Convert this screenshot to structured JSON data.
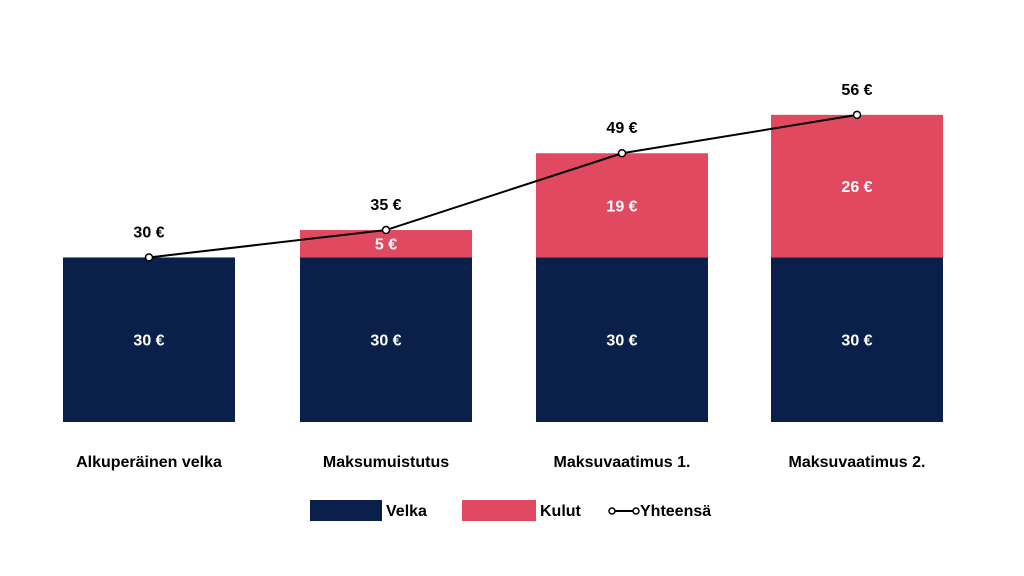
{
  "chart_data": {
    "type": "bar",
    "stacked": true,
    "categories": [
      "Alkuperäinen velka",
      "Maksumuistutus",
      "Maksuvaatimus 1.",
      "Maksuvaatimus 2."
    ],
    "series": [
      {
        "name": "Velka",
        "values": [
          30,
          30,
          30,
          30
        ],
        "labels": [
          "30 €",
          "30 €",
          "30 €",
          "30 €"
        ],
        "color": "#0b1f4b",
        "label_color": "#ffffff"
      },
      {
        "name": "Kulut",
        "values": [
          0,
          5,
          19,
          26
        ],
        "labels": [
          "",
          "5 €",
          "19 €",
          "26 €"
        ],
        "color": "#e0495f",
        "label_color": "#ffffff"
      }
    ],
    "line_series": {
      "name": "Yhteensä",
      "values": [
        30,
        35,
        49,
        56
      ],
      "labels": [
        "30 €",
        "35 €",
        "49 €",
        "56 €"
      ],
      "color": "#000000"
    },
    "ylim": [
      0,
      66
    ],
    "grid": false,
    "legend_position": "bottom"
  }
}
